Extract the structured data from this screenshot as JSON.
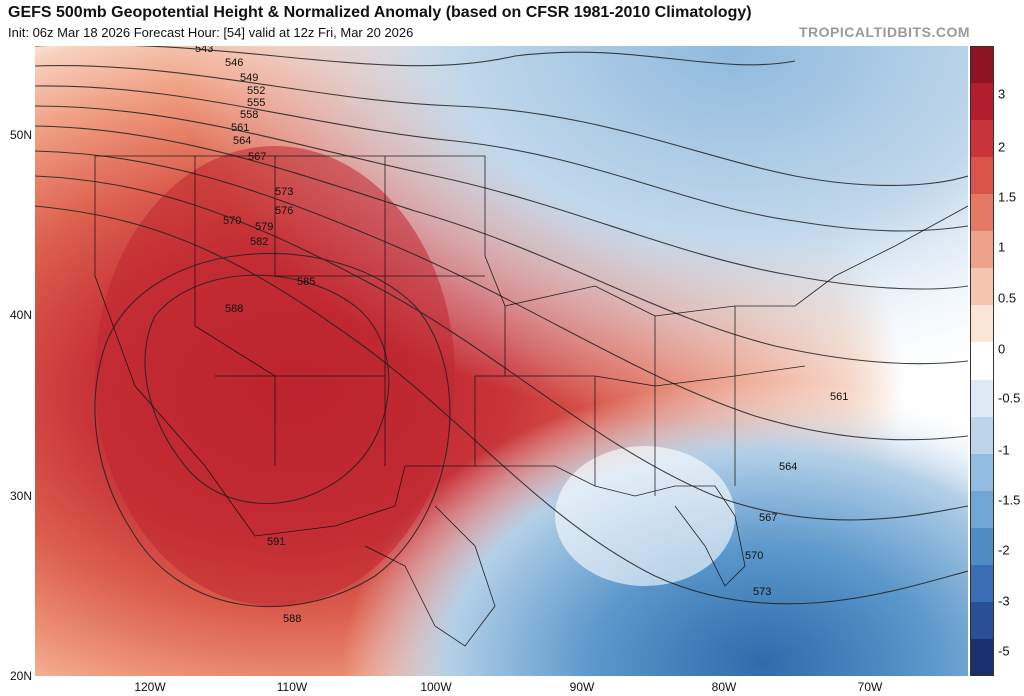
{
  "header": {
    "title": "GEFS 500mb Geopotential Height & Normalized Anomaly (based on CFSR 1981-2010 Climatology)",
    "subtitle": "Init: 06z Mar 18 2026   Forecast Hour: [54]   valid at 12z Fri, Mar 20 2026",
    "brand": "TROPICALTIDBITS.COM"
  },
  "map": {
    "lat_labels": [
      "50N",
      "40N",
      "30N",
      "20N"
    ],
    "lon_labels": [
      "120W",
      "110W",
      "100W",
      "90W",
      "80W",
      "70W"
    ],
    "contour_labels": [
      "543",
      "546",
      "549",
      "552",
      "555",
      "558",
      "561",
      "564",
      "567",
      "570",
      "573",
      "576",
      "579",
      "582",
      "585",
      "588",
      "591",
      "588",
      "561",
      "564",
      "567",
      "570",
      "573"
    ],
    "colors": {
      "strong_positive": "#c1272d",
      "moderate_positive": "#dd5a4a",
      "weak_positive": "#f2b8a0",
      "neutral": "#ffffff",
      "weak_negative": "#c6dcee",
      "strong_negative": "#4f8cc4"
    }
  },
  "colorbar": {
    "labels": [
      "3",
      "2",
      "1.5",
      "1",
      "0.5",
      "0",
      "-0.5",
      "-1",
      "-1.5",
      "-2",
      "-3",
      "-5"
    ],
    "colors": [
      "#1a2f6e",
      "#2b4f96",
      "#3a6db4",
      "#4f8cc4",
      "#6fa6d2",
      "#93bde0",
      "#bcd5ea",
      "#dde9f4",
      "#ffffff",
      "#fbe4d8",
      "#f5c5af",
      "#eea287",
      "#e47a63",
      "#d9534a",
      "#c9343a",
      "#b21e2e",
      "#8e1424"
    ]
  }
}
